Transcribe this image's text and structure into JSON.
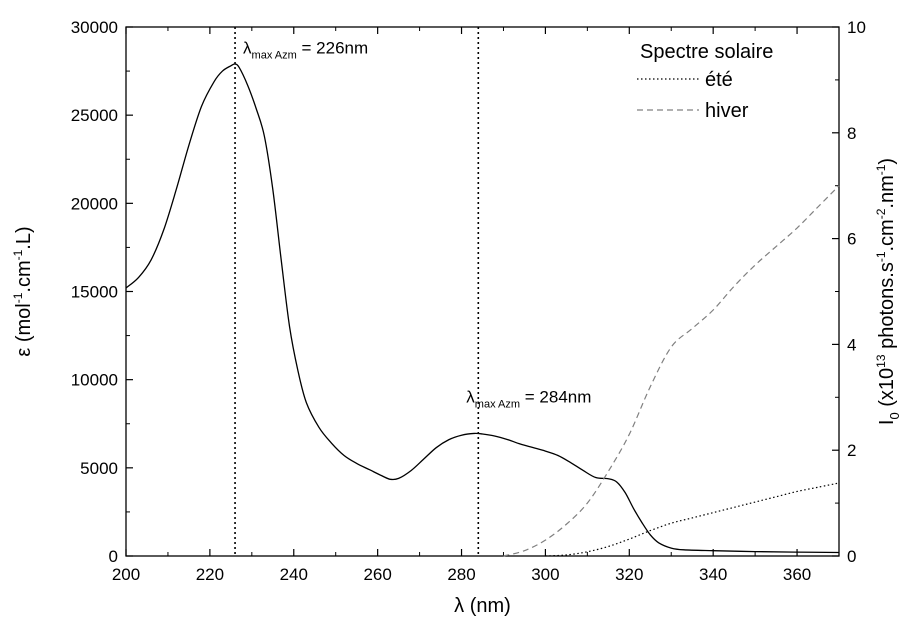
{
  "chart_data": {
    "type": "line",
    "xlabel": "λ (nm)",
    "ylabel": {
      "main": "ε (mol",
      "sup1": "-1",
      "mid": ".cm",
      "sup2": "-1",
      "end": ".L)"
    },
    "y2label": {
      "main": "I",
      "sub": "0",
      "pre": " (x10",
      "sup1": "13",
      "mid1": " photons.s",
      "sup2": "-1",
      "mid2": ".cm",
      "sup3": "-2",
      "mid3": ".nm",
      "sup4": "-1",
      "end": ")"
    },
    "xlim": [
      200,
      370
    ],
    "ylim": [
      0,
      30000
    ],
    "y2lim": [
      0,
      10
    ],
    "xticks": [
      200,
      220,
      240,
      260,
      280,
      300,
      320,
      340,
      360
    ],
    "yticks": [
      0,
      5000,
      10000,
      15000,
      20000,
      25000,
      30000
    ],
    "y2ticks": [
      0,
      2,
      4,
      6,
      8,
      10
    ],
    "series": [
      {
        "axis": "left",
        "style": "solid",
        "x": [
          200,
          203,
          206,
          209,
          212,
          215,
          218,
          221,
          223,
          225,
          226,
          227,
          229,
          231,
          233,
          235,
          237,
          239,
          241,
          243,
          246,
          249,
          252,
          255,
          258,
          261,
          263,
          265,
          268,
          271,
          274,
          277,
          280,
          283,
          285,
          288,
          291,
          294,
          297,
          300,
          303,
          306,
          309,
          312,
          315,
          317,
          319,
          321,
          323,
          325,
          327,
          330,
          333,
          340,
          350,
          360,
          370
        ],
        "y": [
          15200,
          15800,
          16800,
          18500,
          20800,
          23300,
          25500,
          26900,
          27500,
          27800,
          27900,
          27700,
          26700,
          25400,
          23800,
          20800,
          16800,
          13000,
          10500,
          8700,
          7300,
          6400,
          5700,
          5250,
          4900,
          4550,
          4350,
          4400,
          4850,
          5500,
          6150,
          6600,
          6850,
          6950,
          6920,
          6800,
          6600,
          6350,
          6150,
          5950,
          5700,
          5300,
          4850,
          4450,
          4380,
          4200,
          3600,
          2700,
          1900,
          1200,
          750,
          450,
          350,
          300,
          250,
          220,
          200
        ]
      },
      {
        "axis": "right",
        "name": "été",
        "style": "dotted",
        "x": [
          300,
          305,
          310,
          315,
          320,
          325,
          330,
          335,
          340,
          345,
          350,
          355,
          360,
          365,
          370
        ],
        "y": [
          0,
          0.02,
          0.08,
          0.18,
          0.32,
          0.48,
          0.62,
          0.72,
          0.82,
          0.92,
          1.02,
          1.12,
          1.22,
          1.3,
          1.38
        ]
      },
      {
        "axis": "right",
        "name": "hiver",
        "style": "dashed",
        "x": [
          290,
          295,
          300,
          305,
          310,
          315,
          320,
          325,
          330,
          335,
          340,
          345,
          350,
          355,
          360,
          365,
          370
        ],
        "y": [
          0,
          0.1,
          0.3,
          0.6,
          1.0,
          1.6,
          2.3,
          3.2,
          3.95,
          4.3,
          4.65,
          5.1,
          5.5,
          5.85,
          6.2,
          6.6,
          7.0
        ]
      }
    ],
    "vlines": [
      226,
      284
    ],
    "annotations": [
      {
        "symbol": "λ",
        "sub": "max Azm",
        "text": " = 226nm",
        "x": 226,
        "y": 28500
      },
      {
        "symbol": "λ",
        "sub": "max Azm",
        "text": " = 284nm",
        "x": 284,
        "y": 8700
      }
    ],
    "legend": {
      "title": "Spectre solaire",
      "position": "top-right",
      "entries": [
        {
          "label": "été",
          "style": "dotted"
        },
        {
          "label": "hiver",
          "style": "dashed"
        }
      ]
    },
    "colors": {
      "main": "#000000",
      "hiver": "#808080",
      "ete": "#000000"
    }
  }
}
